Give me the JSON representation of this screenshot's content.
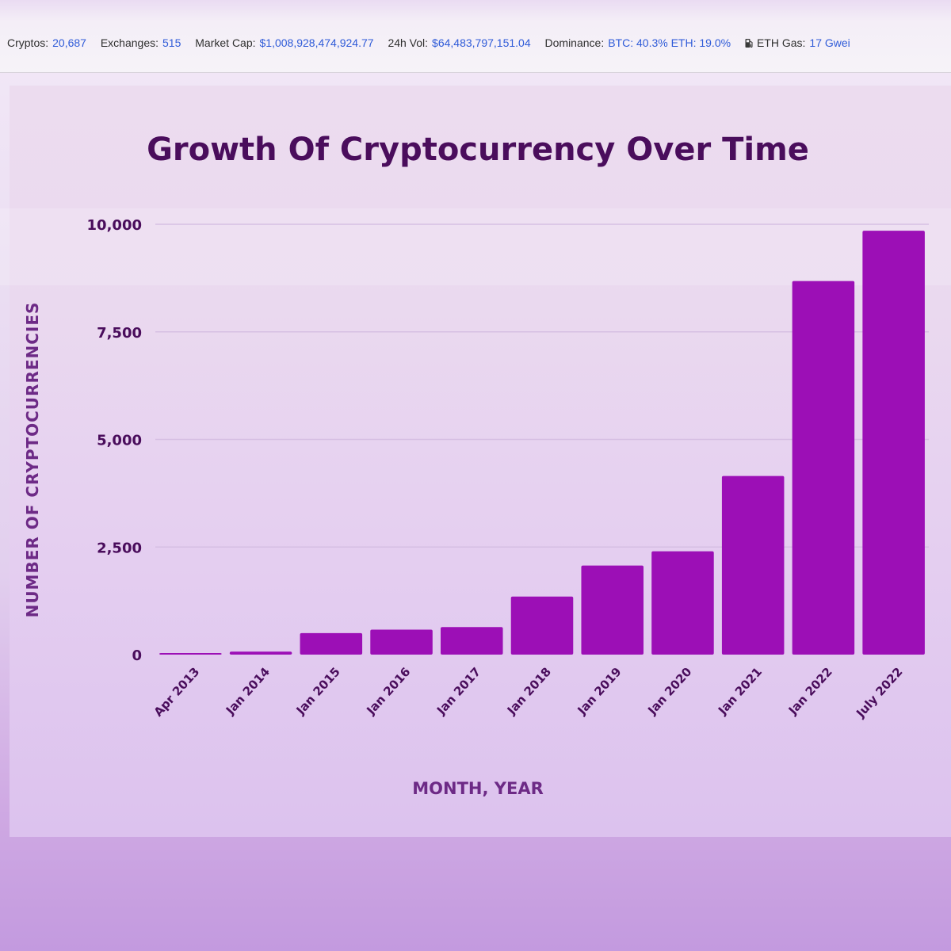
{
  "stats_bar": {
    "cryptos_label": "Cryptos:",
    "cryptos_value": "20,687",
    "exchanges_label": "Exchanges:",
    "exchanges_value": "515",
    "market_cap_label": "Market Cap:",
    "market_cap_value": "$1,008,928,474,924.77",
    "vol_label": "24h Vol:",
    "vol_value": "$64,483,797,151.04",
    "dominance_label": "Dominance:",
    "dominance_value": "BTC: 40.3% ETH: 19.0%",
    "gas_label": "ETH Gas:",
    "gas_value": "17 Gwei",
    "gas_icon": "fuel-pump-icon",
    "value_color": "#2f5bd8"
  },
  "chart_data": {
    "type": "bar",
    "title": "Growth Of Cryptocurrency Over Time",
    "xlabel": "MONTH, YEAR",
    "ylabel": "NUMBER OF CRYPTOCURRENCIES",
    "categories": [
      "Apr 2013",
      "Jan 2014",
      "Jan 2015",
      "Jan 2016",
      "Jan 2017",
      "Jan 2018",
      "Jan 2019",
      "Jan 2020",
      "Jan 2021",
      "Jan 2022",
      "July 2022"
    ],
    "values": [
      20,
      70,
      500,
      580,
      640,
      1350,
      2070,
      2400,
      4150,
      8680,
      9850
    ],
    "ylim": [
      0,
      10000
    ],
    "yticks": [
      0,
      2500,
      5000,
      7500,
      10000
    ],
    "ytick_labels": [
      "0",
      "2,500",
      "5,000",
      "7,500",
      "10,000"
    ],
    "grid": true,
    "bar_color": "#9c0fb6",
    "text_color": "#4a0d5c",
    "axis_title_color": "#6d2a86"
  }
}
